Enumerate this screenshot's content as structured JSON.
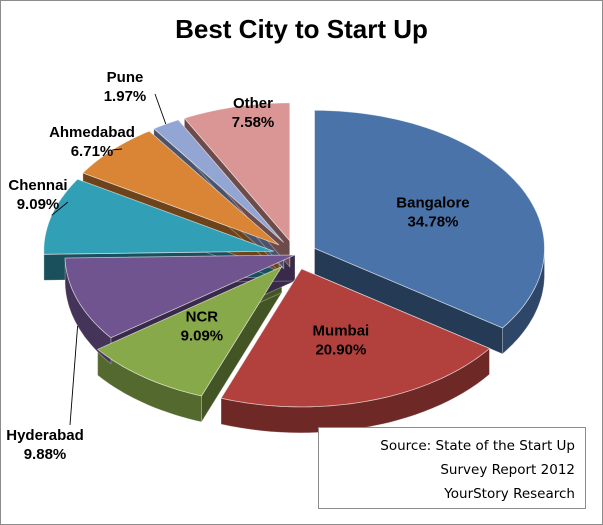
{
  "chart_data": {
    "type": "pie",
    "title": "Best City to Start Up",
    "slices": [
      {
        "label": "Bangalore",
        "value": 34.78,
        "value_text": "34.78%",
        "color": "#4a73a9",
        "exploded": true
      },
      {
        "label": "Mumbai",
        "value": 20.9,
        "value_text": "20.90%",
        "color": "#b2413e",
        "exploded": true
      },
      {
        "label": "NCR",
        "value": 9.09,
        "value_text": "9.09%",
        "color": "#88a94a",
        "exploded": true
      },
      {
        "label": "Hyderabad",
        "value": 9.88,
        "value_text": "9.88%",
        "color": "#6f548f",
        "exploded": false
      },
      {
        "label": "Chennai",
        "value": 9.09,
        "value_text": "9.09%",
        "color": "#31a0b6",
        "exploded": true
      },
      {
        "label": "Ahmedabad",
        "value": 6.71,
        "value_text": "6.71%",
        "color": "#d98535",
        "exploded": true
      },
      {
        "label": "Pune",
        "value": 1.97,
        "value_text": "1.97%",
        "color": "#93a6d3",
        "exploded": true
      },
      {
        "label": "Other",
        "value": 7.58,
        "value_text": "7.58%",
        "color": "#d99694",
        "exploded": true
      }
    ],
    "source_lines": [
      "Source: State of the Start Up",
      "Survey Report 2012",
      "YourStory Research"
    ]
  }
}
